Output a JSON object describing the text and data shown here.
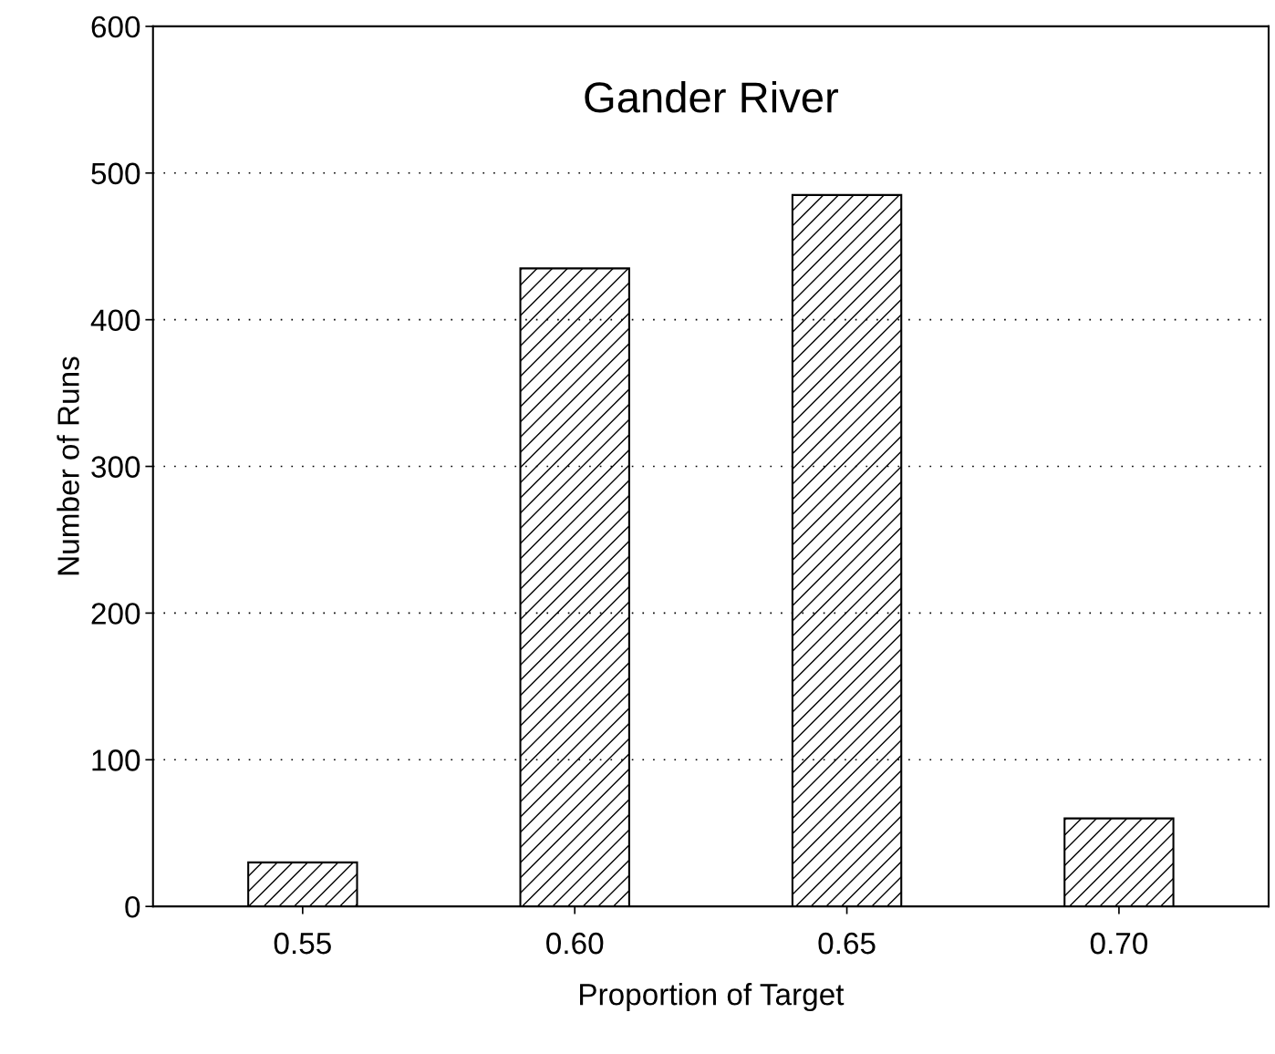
{
  "chart_data": {
    "type": "bar",
    "title": "Gander River",
    "xlabel": "Proportion of Target",
    "ylabel": "Number of Runs",
    "categories": [
      "0.55",
      "0.60",
      "0.65",
      "0.70"
    ],
    "values": [
      30,
      435,
      485,
      60
    ],
    "color": "#000000",
    "ylim": [
      0,
      600
    ],
    "yticks": [
      0,
      100,
      200,
      300,
      400,
      500,
      600
    ],
    "grid": "y"
  }
}
